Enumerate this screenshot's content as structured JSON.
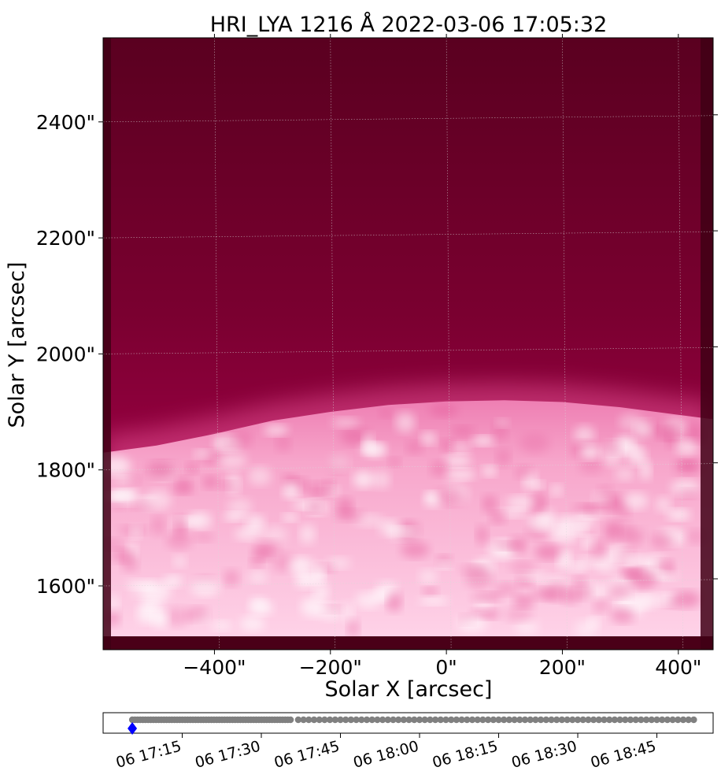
{
  "chart_data": [
    {
      "type": "heatmap",
      "title": "HRI_LYA 1216 Å 2022-03-06 17:05:32",
      "xlabel": "Solar X [arcsec]",
      "ylabel": "Solar Y [arcsec]",
      "xlim": [
        -592,
        460
      ],
      "ylim": [
        1490,
        2545
      ],
      "xticks": [
        {
          "value": -400,
          "label": "−400\""
        },
        {
          "value": -200,
          "label": "−200\""
        },
        {
          "value": 0,
          "label": "0\""
        },
        {
          "value": 200,
          "label": "200\""
        },
        {
          "value": 400,
          "label": "400\""
        }
      ],
      "yticks": [
        {
          "value": 1600,
          "label": "1600\""
        },
        {
          "value": 1800,
          "label": "1800\""
        },
        {
          "value": 2000,
          "label": "2000\""
        },
        {
          "value": 2200,
          "label": "2200\""
        },
        {
          "value": 2400,
          "label": "2400\""
        }
      ],
      "grid": true,
      "colormap": "magenta (dark crimson to white-pink)",
      "colors": {
        "dark": "#5a0020",
        "mid": "#a8004c",
        "limb": "#e24f92",
        "bright": "#ffd0e6",
        "grid": "#d9d9d9"
      },
      "limb_y": [
        {
          "x": -590,
          "y": 1830
        },
        {
          "x": -500,
          "y": 1842
        },
        {
          "x": -400,
          "y": 1862
        },
        {
          "x": -300,
          "y": 1885
        },
        {
          "x": -200,
          "y": 1900
        },
        {
          "x": -100,
          "y": 1912
        },
        {
          "x": 0,
          "y": 1918
        },
        {
          "x": 100,
          "y": 1920
        },
        {
          "x": 200,
          "y": 1917
        },
        {
          "x": 300,
          "y": 1908
        },
        {
          "x": 400,
          "y": 1895
        },
        {
          "x": 455,
          "y": 1888
        }
      ]
    },
    {
      "type": "scatter",
      "description_role": "timeline",
      "x_type": "time",
      "xlim": [
        "2022-03-06 17:00:00",
        "2022-03-06 18:55:40"
      ],
      "xticks": [
        {
          "value": "2022-03-06 17:15",
          "label": "06 17:15"
        },
        {
          "value": "2022-03-06 17:30",
          "label": "06 17:30"
        },
        {
          "value": "2022-03-06 17:45",
          "label": "06 17:45"
        },
        {
          "value": "2022-03-06 18:00",
          "label": "06 18:00"
        },
        {
          "value": "2022-03-06 18:15",
          "label": "06 18:15"
        },
        {
          "value": "2022-03-06 18:30",
          "label": "06 18:30"
        },
        {
          "value": "2022-03-06 18:45",
          "label": "06 18:45"
        }
      ],
      "series": [
        {
          "marker": "circle",
          "color": "#808080",
          "ranges": [
            {
              "start": "2022-03-06 17:05:32",
              "end": "2022-03-06 17:36:00",
              "cadence_s": 30
            },
            {
              "start": "2022-03-06 17:37:00",
              "end": "2022-03-06 18:52:00",
              "cadence_s": 60
            }
          ]
        },
        {
          "marker": "diamond",
          "color": "#0000ff",
          "x": [
            "2022-03-06 17:05:32"
          ]
        }
      ]
    }
  ]
}
